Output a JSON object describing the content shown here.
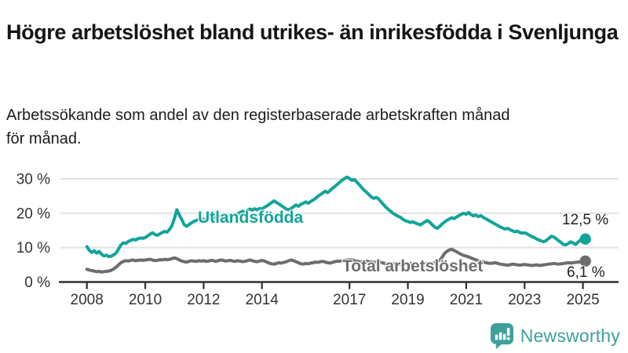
{
  "header": {
    "title": "Högre arbetslöshet bland utrikes- än inrikesfödda i Svenljunga",
    "subtitle": "Arbetssökande som andel av den registerbaserade arbetskraften månad för månad."
  },
  "branding": {
    "logo_text": "Newsworthy",
    "logo_icon": "bar-chart-speech-bubble-icon",
    "logo_color": "#3fa09a"
  },
  "colors": {
    "foreign_born_line": "#12a49b",
    "total_line": "#6d6d6d",
    "gridline": "#e1e1e1",
    "axis": "#2e2e2e",
    "tick_text": "#333333",
    "end_label_text": "#222222"
  },
  "chart_data": {
    "type": "line",
    "title": "",
    "xlabel": "",
    "ylabel": "",
    "grid": true,
    "legend_position": "inline-labels-on-lines",
    "ylim": [
      0,
      33
    ],
    "y_ticks": [
      {
        "value": 0,
        "label": "0 %"
      },
      {
        "value": 10,
        "label": "10 %"
      },
      {
        "value": 20,
        "label": "20 %"
      },
      {
        "value": 30,
        "label": "30 %"
      }
    ],
    "x_tick_years": [
      2008,
      2010,
      2012,
      2014,
      2017,
      2019,
      2021,
      2023,
      2025
    ],
    "x_tick_labels": [
      "2008",
      "2010",
      "2012",
      "2014",
      "2017",
      "2019",
      "2021",
      "2023",
      "2025"
    ],
    "x_start_year": 2008,
    "x_step_months": 1,
    "x_end": "2025-02",
    "series": [
      {
        "name": "Utlandsfödda",
        "color": "#12a49b",
        "end_label": "12,5 %",
        "end_value": 12.5,
        "values": [
          10.3,
          9.2,
          8.6,
          9.1,
          8.4,
          8.9,
          8.1,
          7.6,
          7.8,
          7.4,
          7.5,
          7.9,
          8.4,
          9.6,
          10.8,
          11.4,
          11.2,
          11.8,
          12.1,
          12.4,
          12.2,
          12.6,
          12.8,
          12.7,
          12.9,
          13.4,
          13.9,
          14.3,
          13.8,
          13.6,
          14.0,
          14.4,
          14.7,
          14.5,
          15.3,
          16.4,
          18.5,
          21.0,
          19.5,
          18.2,
          16.7,
          16.2,
          16.7,
          17.2,
          17.6,
          17.9,
          18.2,
          18.0,
          18.3,
          18.0,
          18.4,
          18.8,
          18.5,
          18.9,
          19.2,
          18.8,
          19.0,
          19.4,
          19.1,
          19.3,
          19.6,
          19.3,
          19.8,
          20.2,
          20.6,
          20.3,
          20.8,
          21.2,
          20.9,
          21.3,
          21.0,
          21.4,
          21.2,
          21.7,
          22.1,
          22.6,
          23.1,
          23.6,
          23.1,
          22.7,
          22.2,
          21.7,
          21.2,
          21.0,
          21.4,
          21.9,
          22.4,
          22.0,
          22.6,
          22.9,
          23.3,
          22.9,
          23.4,
          23.8,
          24.3,
          24.9,
          25.4,
          25.9,
          26.4,
          26.0,
          26.6,
          27.2,
          27.8,
          28.4,
          29.0,
          29.6,
          30.1,
          30.5,
          30.1,
          29.5,
          29.8,
          29.1,
          28.3,
          27.5,
          26.7,
          26.1,
          25.4,
          24.7,
          24.3,
          24.6,
          24.1,
          23.3,
          22.5,
          21.7,
          21.1,
          20.5,
          19.9,
          19.5,
          19.1,
          18.8,
          18.2,
          17.8,
          17.6,
          17.3,
          17.5,
          17.2,
          16.9,
          16.6,
          17.0,
          17.5,
          17.9,
          17.4,
          16.7,
          16.0,
          15.6,
          16.1,
          16.8,
          17.4,
          17.9,
          18.3,
          18.7,
          18.4,
          18.9,
          19.3,
          19.7,
          20.0,
          19.7,
          20.2,
          19.6,
          19.2,
          19.5,
          19.0,
          19.3,
          18.8,
          18.4,
          18.0,
          17.6,
          17.2,
          16.8,
          16.4,
          16.0,
          15.7,
          15.4,
          15.6,
          15.2,
          14.9,
          14.6,
          14.8,
          14.4,
          14.2,
          14.3,
          14.0,
          13.6,
          13.2,
          12.9,
          12.5,
          12.2,
          11.9,
          11.7,
          12.1,
          12.7,
          13.3,
          13.1,
          12.6,
          12.0,
          11.5,
          10.9,
          10.8,
          11.2,
          11.7,
          11.3,
          10.9,
          11.6,
          12.2,
          12.4,
          12.5
        ]
      },
      {
        "name": "Total arbetslöshet",
        "color": "#6d6d6d",
        "end_label": "6,1 %",
        "end_value": 6.1,
        "values": [
          3.7,
          3.5,
          3.3,
          3.2,
          3.0,
          3.1,
          2.9,
          3.0,
          3.1,
          3.2,
          3.4,
          3.8,
          4.3,
          5.0,
          5.6,
          6.0,
          6.2,
          6.1,
          6.3,
          6.4,
          6.2,
          6.3,
          6.4,
          6.3,
          6.4,
          6.5,
          6.6,
          6.4,
          6.2,
          6.3,
          6.5,
          6.4,
          6.6,
          6.5,
          6.6,
          6.8,
          7.0,
          6.8,
          6.4,
          6.1,
          5.9,
          5.8,
          6.0,
          6.2,
          6.1,
          6.0,
          6.2,
          6.1,
          6.2,
          6.0,
          6.1,
          6.3,
          6.2,
          6.0,
          6.2,
          6.4,
          6.3,
          6.1,
          6.2,
          6.3,
          6.1,
          6.0,
          6.2,
          6.1,
          5.9,
          6.0,
          6.2,
          6.4,
          6.2,
          6.0,
          5.9,
          6.1,
          6.3,
          6.1,
          5.8,
          5.5,
          5.3,
          5.2,
          5.4,
          5.6,
          5.5,
          5.7,
          5.9,
          6.2,
          6.4,
          6.2,
          5.9,
          5.6,
          5.3,
          5.2,
          5.4,
          5.3,
          5.5,
          5.6,
          5.8,
          5.7,
          5.9,
          6.0,
          5.8,
          5.6,
          5.5,
          5.7,
          5.9,
          6.1,
          6.0,
          6.2,
          6.3,
          6.4,
          6.5,
          6.4,
          6.2,
          6.0,
          5.9,
          5.8,
          6.0,
          6.1,
          5.9,
          5.8,
          5.7,
          5.8,
          5.9,
          5.7,
          5.5,
          5.3,
          5.2,
          5.1,
          5.3,
          5.4,
          5.2,
          5.1,
          5.0,
          5.2,
          5.3,
          5.4,
          5.2,
          5.1,
          5.0,
          5.2,
          5.4,
          5.5,
          5.3,
          5.2,
          5.4,
          5.6,
          5.9,
          6.3,
          7.1,
          8.2,
          8.9,
          9.3,
          9.5,
          9.2,
          8.8,
          8.4,
          8.0,
          7.7,
          7.5,
          7.3,
          7.0,
          6.7,
          6.4,
          6.2,
          6.0,
          5.8,
          5.6,
          5.5,
          5.4,
          5.5,
          5.6,
          5.4,
          5.2,
          5.1,
          5.0,
          4.9,
          5.0,
          5.2,
          5.1,
          5.0,
          4.9,
          5.0,
          5.1,
          5.0,
          4.9,
          4.8,
          4.9,
          5.0,
          4.8,
          4.9,
          5.0,
          5.1,
          5.2,
          5.3,
          5.4,
          5.3,
          5.2,
          5.3,
          5.4,
          5.5,
          5.6,
          5.5,
          5.6,
          5.7,
          5.8,
          5.9,
          6.0,
          6.1
        ]
      }
    ]
  }
}
